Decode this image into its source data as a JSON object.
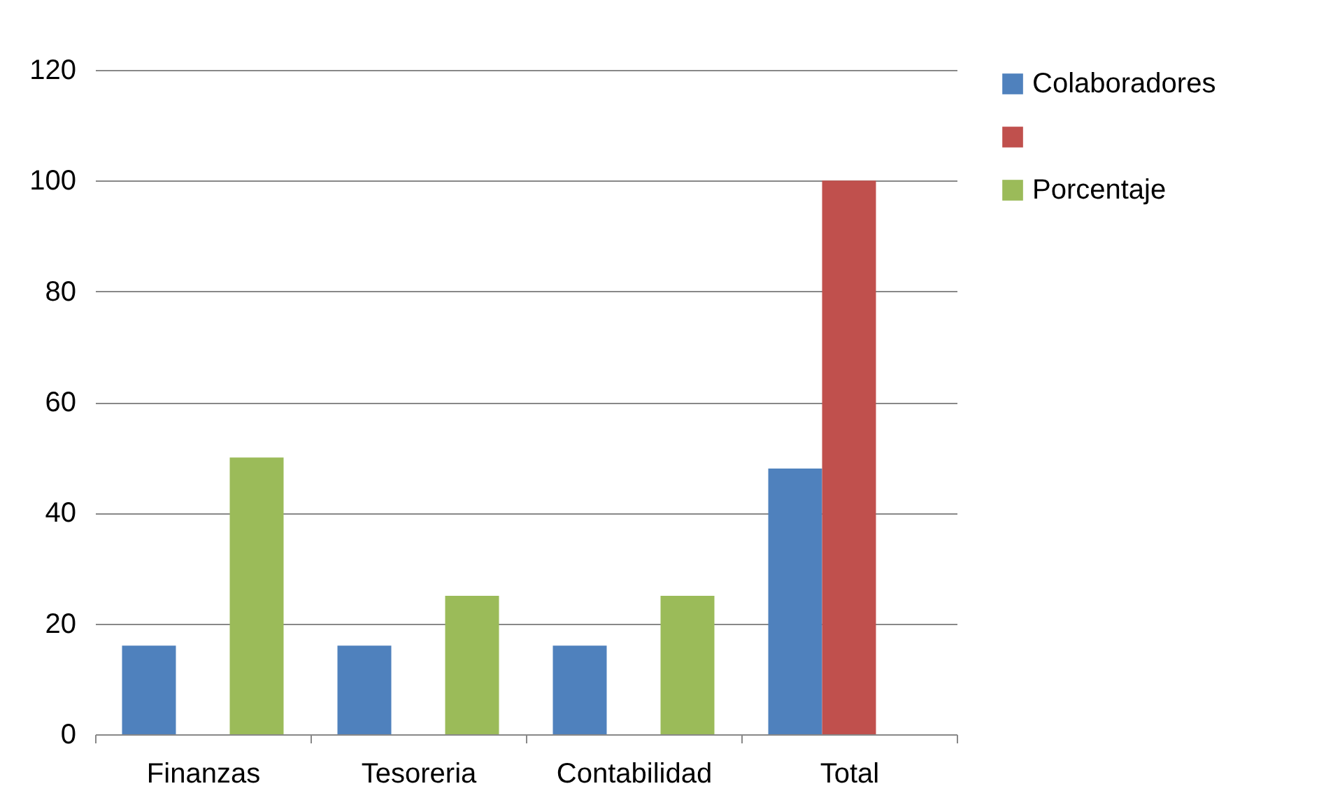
{
  "chart_data": {
    "type": "bar",
    "categories": [
      "Finanzas",
      "Tesoreria",
      "Contabilidad",
      "Total"
    ],
    "series": [
      {
        "name": "Colaboradores",
        "color": "#4f81bd",
        "values": [
          16,
          16,
          16,
          48
        ]
      },
      {
        "color": "#c0504d",
        "values": [
          null,
          null,
          null,
          100
        ]
      },
      {
        "name": "Porcentaje",
        "color": "#9bbb59",
        "values": [
          50,
          25,
          25,
          null
        ]
      }
    ],
    "ylim": [
      0,
      120
    ],
    "yticks": [
      0,
      20,
      40,
      60,
      80,
      100,
      120
    ],
    "grid": "y",
    "legend": "right"
  }
}
